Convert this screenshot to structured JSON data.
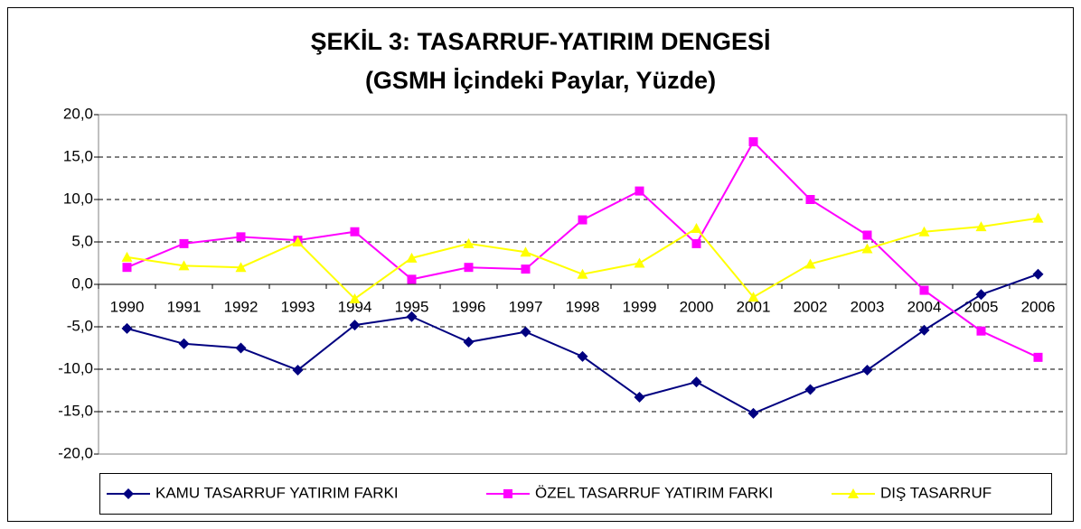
{
  "chart_data": {
    "type": "line",
    "title": "ŞEKİL 3: TASARRUF-YATIRIM DENGESİ",
    "subtitle": "(GSMH İçindeki Paylar, Yüzde)",
    "categories": [
      "1990",
      "1991",
      "1992",
      "1993",
      "1994",
      "1995",
      "1996",
      "1997",
      "1998",
      "1999",
      "2000",
      "2001",
      "2002",
      "2003",
      "2004",
      "2005",
      "2006"
    ],
    "series": [
      {
        "name": "KAMU TASARRUF YATIRIM FARKI",
        "color": "#000080",
        "marker": "diamond",
        "values": [
          -5.2,
          -7.0,
          -7.5,
          -10.1,
          -4.8,
          -3.8,
          -6.8,
          -5.6,
          -8.5,
          -13.3,
          -11.5,
          -15.2,
          -12.4,
          -10.1,
          -5.4,
          -1.2,
          1.2
        ]
      },
      {
        "name": "ÖZEL TASARRUF YATIRIM FARKI",
        "color": "#ff00ff",
        "marker": "square",
        "values": [
          2.0,
          4.8,
          5.6,
          5.2,
          6.2,
          0.6,
          2.0,
          1.8,
          7.6,
          11.0,
          4.8,
          16.8,
          10.0,
          5.8,
          -0.7,
          -5.5,
          -8.6
        ]
      },
      {
        "name": "DIŞ TASARRUF",
        "color": "#ffff00",
        "marker": "triangle",
        "values": [
          3.2,
          2.2,
          2.0,
          5.0,
          -1.7,
          3.1,
          4.8,
          3.8,
          1.2,
          2.5,
          6.6,
          -1.5,
          2.4,
          4.2,
          6.2,
          6.8,
          7.8
        ]
      }
    ],
    "ylim": [
      -20,
      20
    ],
    "yticks": [
      {
        "value": -20,
        "label": "-20,0"
      },
      {
        "value": -15,
        "label": "-15,0"
      },
      {
        "value": -10,
        "label": "-10,0"
      },
      {
        "value": -5,
        "label": "-5,0"
      },
      {
        "value": 0,
        "label": "0,0"
      },
      {
        "value": 5,
        "label": "5,0"
      },
      {
        "value": 10,
        "label": "10,0"
      },
      {
        "value": 15,
        "label": "15,0"
      },
      {
        "value": 20,
        "label": "20,0"
      }
    ],
    "grid": true,
    "legend": "bottom"
  }
}
